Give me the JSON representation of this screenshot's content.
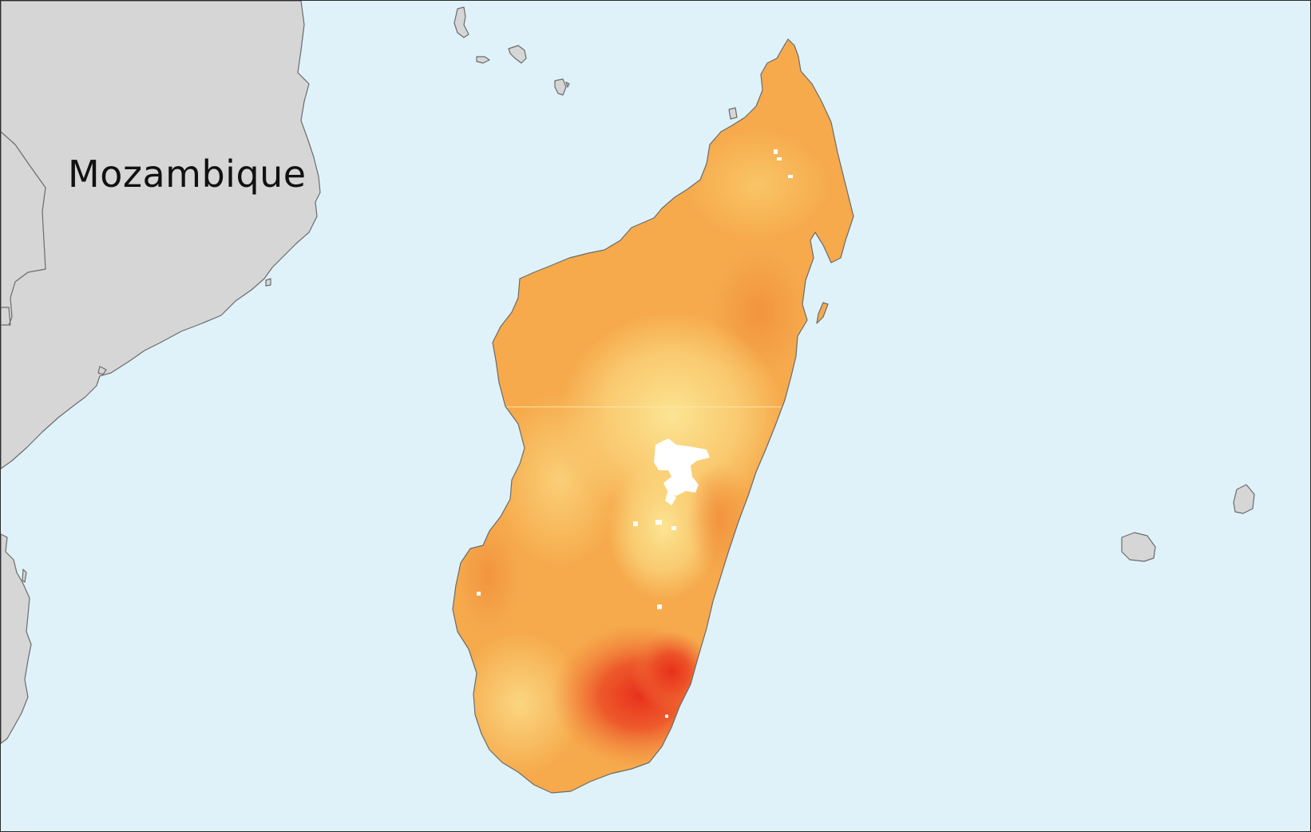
{
  "map": {
    "labels": {
      "mozambique": "Mozambique"
    },
    "colors": {
      "ocean": "#dff2f9",
      "land_neighbor": "#d6d6d6",
      "coastline": "#6b6b6b",
      "value_low": "#fbe38a",
      "value_mid": "#f6aa4c",
      "value_high": "#e8331e",
      "no_data": "#ffffff"
    }
  }
}
